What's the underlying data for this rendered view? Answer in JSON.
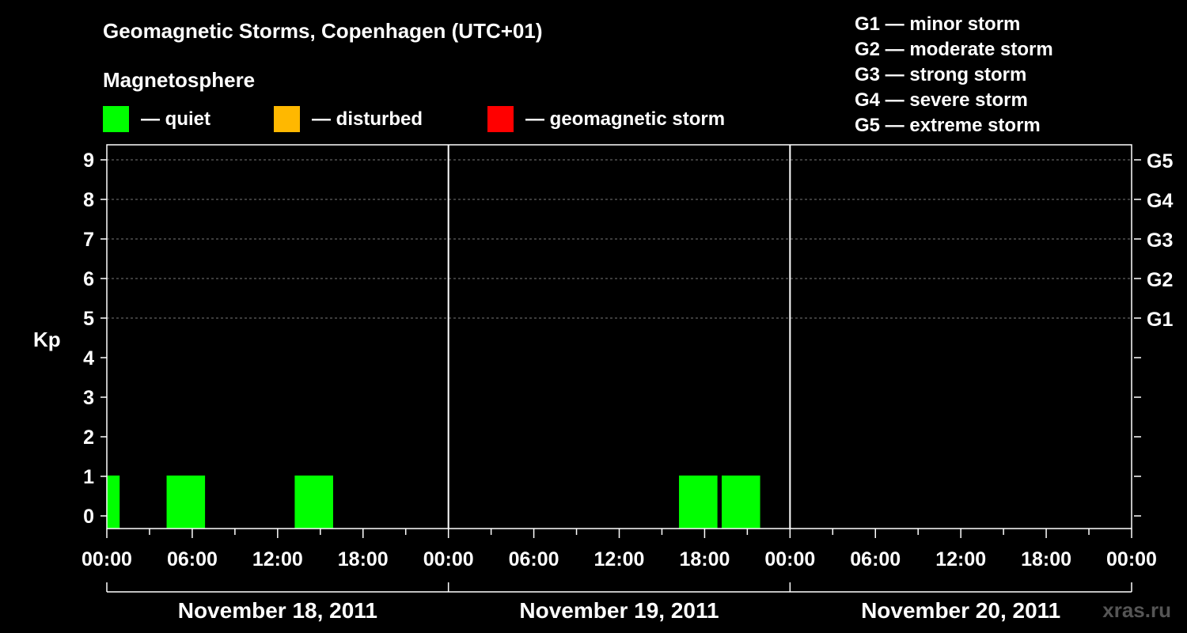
{
  "chart_data": {
    "type": "bar",
    "title": "Geomagnetic Storms, Copenhagen (UTC+01)",
    "subtitle": "Magnetosphere",
    "ylabel": "Kp",
    "ylim": [
      0,
      9
    ],
    "yticks": [
      "0",
      "1",
      "2",
      "3",
      "4",
      "5",
      "6",
      "7",
      "8",
      "9"
    ],
    "xlim_hours": [
      0,
      72
    ],
    "xtick_labels": [
      "00:00",
      "06:00",
      "12:00",
      "18:00",
      "00:00",
      "06:00",
      "12:00",
      "18:00",
      "00:00",
      "06:00",
      "12:00",
      "18:00",
      "00:00"
    ],
    "date_labels": [
      "November 18, 2011",
      "November 19, 2011",
      "November 20, 2011"
    ],
    "legend": [
      {
        "label": "— quiet",
        "color": "#00ff00"
      },
      {
        "label": "— disturbed",
        "color": "#ffb800"
      },
      {
        "label": "— geomagnetic storm",
        "color": "#ff0000"
      }
    ],
    "storm_scale": [
      "G1 — minor storm",
      "G2 — moderate storm",
      "G3 — strong storm",
      "G4 — severe storm",
      "G5 — extreme storm"
    ],
    "right_axis_labels": [
      {
        "label": "G1",
        "kp": 5
      },
      {
        "label": "G2",
        "kp": 6
      },
      {
        "label": "G3",
        "kp": 7
      },
      {
        "label": "G4",
        "kp": 8
      },
      {
        "label": "G5",
        "kp": 9
      }
    ],
    "bars": [
      {
        "start_hour": 0.0,
        "end_hour": 0.9,
        "kp": 1,
        "level": "quiet"
      },
      {
        "start_hour": 4.2,
        "end_hour": 6.9,
        "kp": 1,
        "level": "quiet"
      },
      {
        "start_hour": 13.2,
        "end_hour": 15.9,
        "kp": 1,
        "level": "quiet"
      },
      {
        "start_hour": 40.2,
        "end_hour": 42.9,
        "kp": 1,
        "level": "quiet"
      },
      {
        "start_hour": 43.2,
        "end_hour": 45.9,
        "kp": 1,
        "level": "quiet"
      }
    ],
    "grid": true
  },
  "credit": "xras.ru"
}
